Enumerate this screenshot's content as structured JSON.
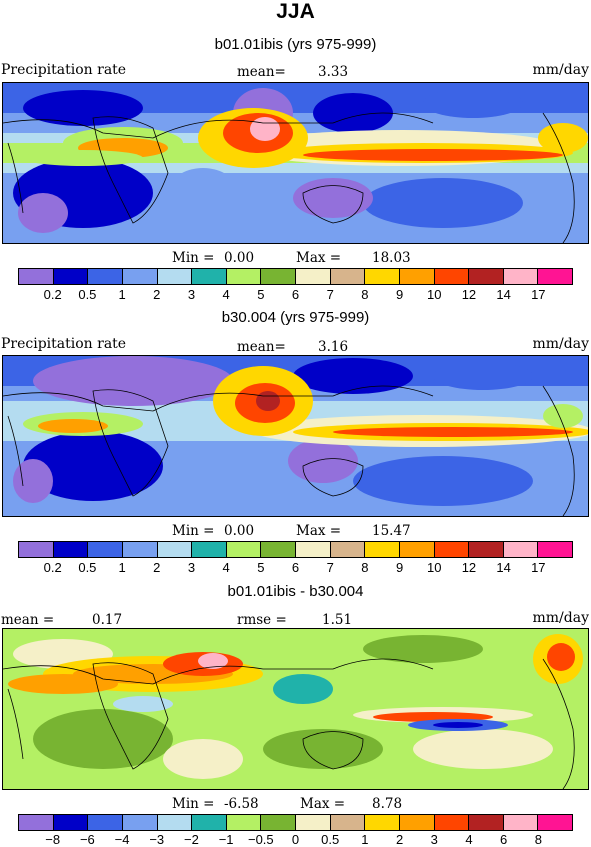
{
  "figure": {
    "title": "JJA",
    "colors_abs": [
      "#9370DB",
      "#0000C8",
      "#3C64E6",
      "#78A0F0",
      "#B4DCF0",
      "#20B2AA",
      "#B4F064",
      "#78B432",
      "#F5F0C8",
      "#D7B48C",
      "#FFD700",
      "#FFA000",
      "#FF4500",
      "#B22222",
      "#FFB4C8",
      "#FF1493"
    ],
    "colors_diff": [
      "#9370DB",
      "#0000C8",
      "#3C64E6",
      "#78A0F0",
      "#B4DCF0",
      "#20B2AA",
      "#B4F064",
      "#78B432",
      "#F5F0C8",
      "#D7B48C",
      "#FFD700",
      "#FFA000",
      "#FF4500",
      "#B22222",
      "#FFB4C8",
      "#FF1493"
    ]
  },
  "panels": [
    {
      "subtitle": "b01.01ibis (yrs 975-999)",
      "left_label": "Precipitation rate",
      "stat_label": "mean=",
      "stat_value": "3.33",
      "units": "mm/day",
      "min_label": "Min =",
      "min_value": "0.00",
      "max_label": "Max =",
      "max_value": "18.03",
      "ticks": [
        "0.2",
        "0.5",
        "1",
        "2",
        "3",
        "4",
        "5",
        "6",
        "7",
        "8",
        "9",
        "10",
        "12",
        "14",
        "17"
      ]
    },
    {
      "subtitle": "b30.004 (yrs 975-999)",
      "left_label": "Precipitation rate",
      "stat_label": "mean=",
      "stat_value": "3.16",
      "units": "mm/day",
      "min_label": "Min =",
      "min_value": "0.00",
      "max_label": "Max =",
      "max_value": "15.47",
      "ticks": [
        "0.2",
        "0.5",
        "1",
        "2",
        "3",
        "4",
        "5",
        "6",
        "7",
        "8",
        "9",
        "10",
        "12",
        "14",
        "17"
      ]
    },
    {
      "subtitle": "b01.01ibis - b30.004",
      "mean_label": "mean =",
      "mean_value": "0.17",
      "rmse_label": "rmse =",
      "rmse_value": "1.51",
      "units": "mm/day",
      "min_label": "Min =",
      "min_value": "-6.58",
      "max_label": "Max =",
      "max_value": "8.78",
      "ticks": [
        "−8",
        "−6",
        "−4",
        "−3",
        "−2",
        "−1",
        "−0.5",
        "0",
        "0.5",
        "1",
        "2",
        "3",
        "4",
        "6",
        "8"
      ]
    }
  ],
  "chart_data": [
    {
      "type": "heatmap",
      "title": "b01.01ibis (yrs 975-999)",
      "variable": "Precipitation rate",
      "units": "mm/day",
      "mean": 3.33,
      "min": 0.0,
      "max": 18.03,
      "contour_levels": [
        0.2,
        0.5,
        1,
        2,
        3,
        4,
        5,
        6,
        7,
        8,
        9,
        10,
        12,
        14,
        17
      ]
    },
    {
      "type": "heatmap",
      "title": "b30.004 (yrs 975-999)",
      "variable": "Precipitation rate",
      "units": "mm/day",
      "mean": 3.16,
      "min": 0.0,
      "max": 15.47,
      "contour_levels": [
        0.2,
        0.5,
        1,
        2,
        3,
        4,
        5,
        6,
        7,
        8,
        9,
        10,
        12,
        14,
        17
      ]
    },
    {
      "type": "heatmap",
      "title": "b01.01ibis - b30.004",
      "units": "mm/day",
      "mean": 0.17,
      "rmse": 1.51,
      "min": -6.58,
      "max": 8.78,
      "contour_levels": [
        -8,
        -6,
        -4,
        -3,
        -2,
        -1,
        -0.5,
        0,
        0.5,
        1,
        2,
        3,
        4,
        6,
        8
      ]
    }
  ]
}
